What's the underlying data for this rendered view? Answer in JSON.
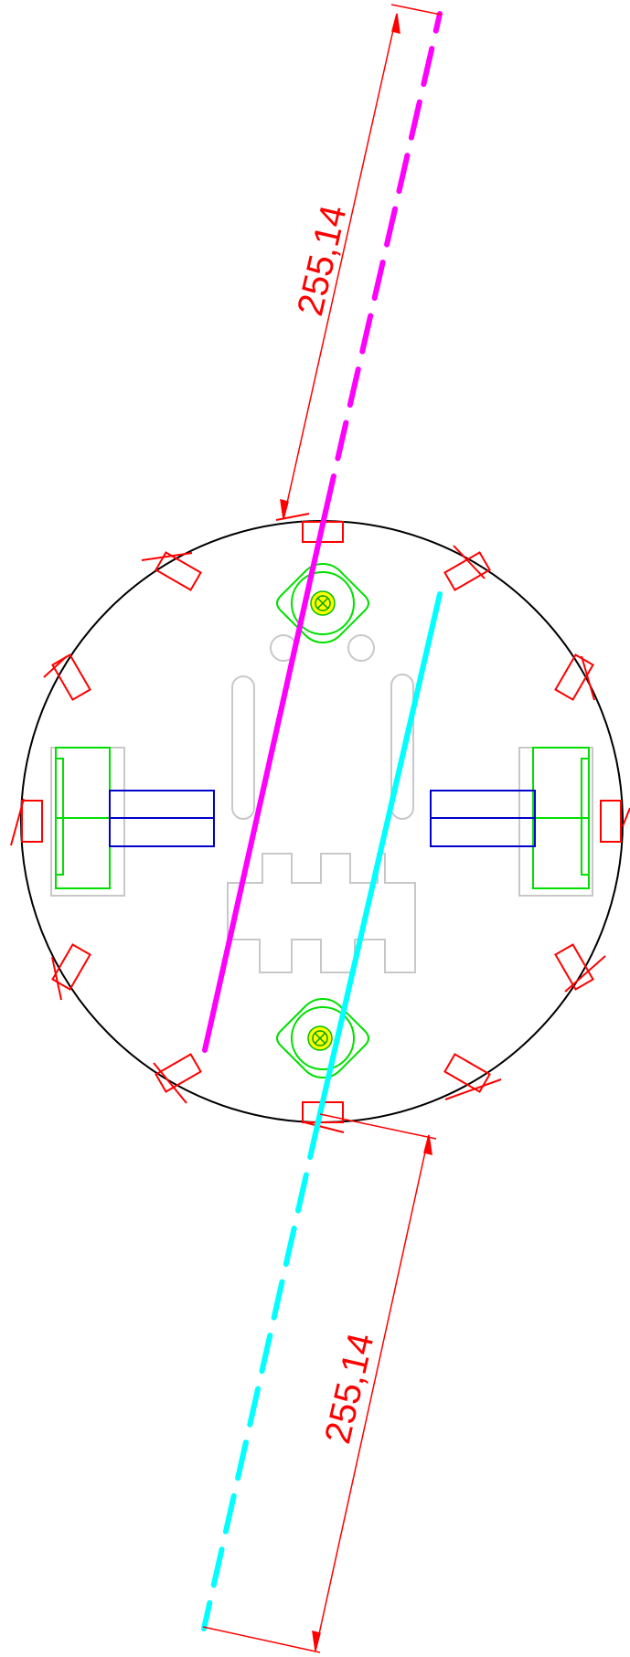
{
  "dimensions": {
    "upper_label": "255,14",
    "lower_label": "255,14"
  },
  "colors": {
    "background": "#ffffff",
    "outline": "#000000",
    "dimension": "#ff0000",
    "sensor_boxes": "#ff0000",
    "upper_path": "#ff00ff",
    "lower_path": "#00ffff",
    "wheel_brackets": "#00ff00",
    "motors": "#0000cc",
    "light_parts": "#c8c8c8",
    "caster_core": "#ffff00"
  }
}
